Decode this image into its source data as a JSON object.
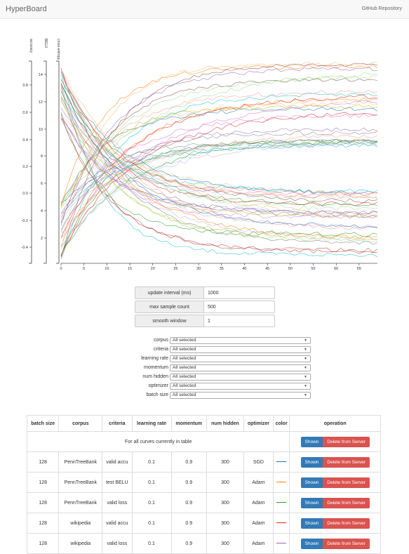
{
  "navbar": {
    "brand": "HyperBoard",
    "link": "GitHub Repository"
  },
  "chart_data": {
    "type": "line",
    "axes": [
      {
        "label": "accuracy",
        "ticks": [
          "0.8",
          "0.6",
          "0.4",
          "0.2",
          "0.0",
          "-0.2",
          "-0.4"
        ]
      },
      {
        "label": "BELU",
        "ticks": [
          "14",
          "12",
          "10",
          "8",
          "6",
          "4",
          "2"
        ]
      },
      {
        "label": "cross-entropy",
        "ticks": []
      }
    ],
    "x_ticks": [
      "0",
      "5",
      "10",
      "15",
      "20",
      "25",
      "30",
      "35",
      "40",
      "45",
      "50",
      "55",
      "60",
      "65"
    ],
    "xlim": [
      0,
      69
    ],
    "colors": [
      "#1f77b4",
      "#ff7f0e",
      "#2ca02c",
      "#d62728",
      "#9467bd",
      "#8c564b",
      "#e377c2",
      "#7f7f7f",
      "#bcbd22",
      "#17becf",
      "#aec7e8",
      "#ffbb78",
      "#98df8a",
      "#ff9896",
      "#c5b0d5"
    ]
  },
  "controls": [
    {
      "label": "update interval (ms)",
      "value": "1000"
    },
    {
      "label": "max sample count",
      "value": "500"
    },
    {
      "label": "smooth window",
      "value": "1"
    }
  ],
  "filters": [
    {
      "label": "corpus",
      "value": "All selected"
    },
    {
      "label": "criteria",
      "value": "All selected"
    },
    {
      "label": "learning rate",
      "value": "All selected"
    },
    {
      "label": "momentum",
      "value": "All selected"
    },
    {
      "label": "num hidden",
      "value": "All selected"
    },
    {
      "label": "optimizer",
      "value": "All selected"
    },
    {
      "label": "batch size",
      "value": "All selected"
    }
  ],
  "table": {
    "headers": [
      "batch size",
      "corpus",
      "criteria",
      "learning rate",
      "momentum",
      "num hidden",
      "optimizer",
      "color",
      "operation"
    ],
    "all_label": "For all curves currently in table",
    "shown_label": "Shown",
    "delete_label": "Delete from Server",
    "rows": [
      {
        "batch": "128",
        "corpus": "PennTreeBank",
        "criteria": "valid accu",
        "lr": "0.1",
        "momentum": "0.9",
        "hidden": "300",
        "optimizer": "SGD",
        "color": "#1f77b4"
      },
      {
        "batch": "128",
        "corpus": "PennTreeBank",
        "criteria": "test BELU",
        "lr": "0.1",
        "momentum": "0.9",
        "hidden": "300",
        "optimizer": "Adam",
        "color": "#ff7f0e"
      },
      {
        "batch": "128",
        "corpus": "PennTreeBank",
        "criteria": "valid loss",
        "lr": "0.1",
        "momentum": "0.9",
        "hidden": "300",
        "optimizer": "Adam",
        "color": "#2ca02c"
      },
      {
        "batch": "128",
        "corpus": "wikipedia",
        "criteria": "valid accu",
        "lr": "0.1",
        "momentum": "0.9",
        "hidden": "300",
        "optimizer": "Adam",
        "color": "#d62728"
      },
      {
        "batch": "128",
        "corpus": "wikipedia",
        "criteria": "valid loss",
        "lr": "0.1",
        "momentum": "0.9",
        "hidden": "300",
        "optimizer": "Adam",
        "color": "#9467bd"
      }
    ]
  }
}
